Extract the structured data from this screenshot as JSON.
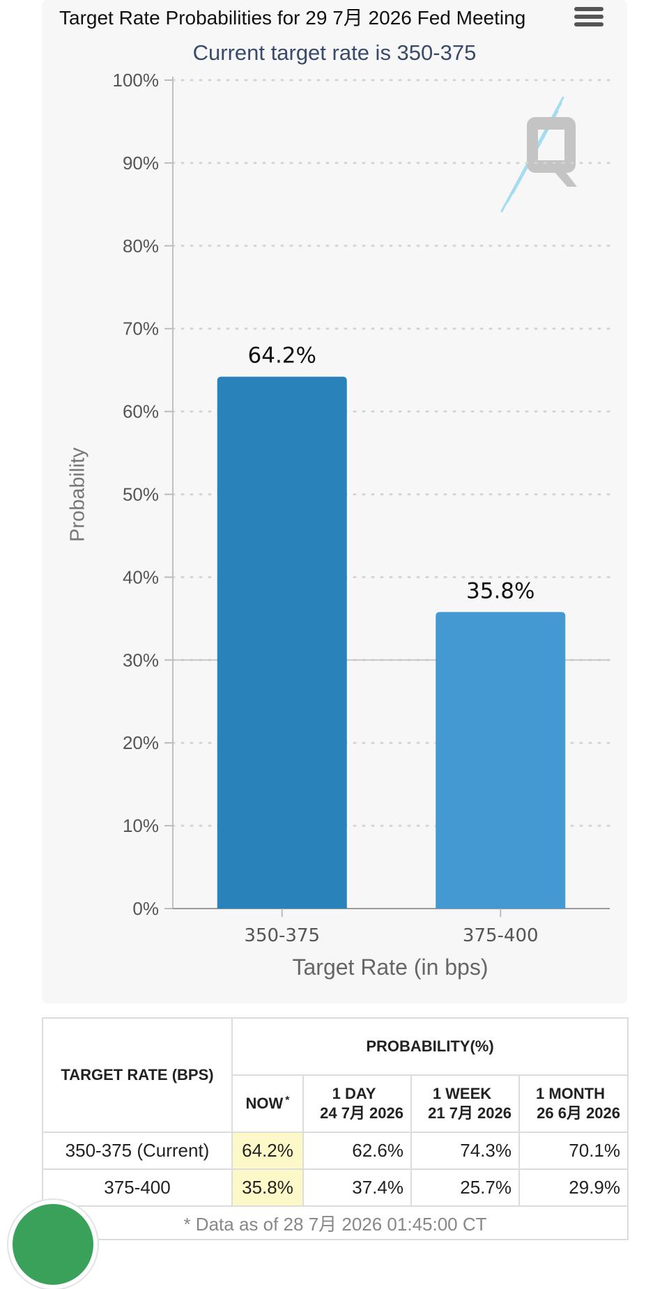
{
  "header": {
    "title": "Target Rate Probabilities for 29 7月 2026 Fed Meeting",
    "menu_icon": "hamburger-menu-icon"
  },
  "chart_data": {
    "type": "bar",
    "title": "Target Rate Probabilities for 29 7月 2026 Fed Meeting",
    "subtitle": "Current target rate is 350-375",
    "categories": [
      "350-375",
      "375-400"
    ],
    "values": [
      64.2,
      35.8
    ],
    "data_labels": [
      "64.2%",
      "35.8%"
    ],
    "xlabel": "Target Rate (in bps)",
    "ylabel": "Probability",
    "ylim": [
      0,
      100
    ],
    "yticks": [
      {
        "value": 100,
        "label": "100%"
      },
      {
        "value": 90,
        "label": "90%"
      },
      {
        "value": 80,
        "label": "80%"
      },
      {
        "value": 70,
        "label": "70%"
      },
      {
        "value": 60,
        "label": "60%"
      },
      {
        "value": 50,
        "label": "50%"
      },
      {
        "value": 40,
        "label": "40%"
      },
      {
        "value": 30,
        "label": "30%"
      },
      {
        "value": 20,
        "label": "20%"
      },
      {
        "value": 10,
        "label": "10%"
      },
      {
        "value": 0,
        "label": "0%"
      }
    ],
    "grid": true,
    "legend": "none",
    "bar_colors": [
      "#2a82ba",
      "#4499d2"
    ]
  },
  "table": {
    "rate_header": "TARGET RATE (BPS)",
    "prob_header": "PROBABILITY(%)",
    "columns": [
      {
        "line1": "NOW",
        "line2": "",
        "mark": "*"
      },
      {
        "line1": "1 DAY",
        "line2": "24 7月 2026",
        "mark": ""
      },
      {
        "line1": "1 WEEK",
        "line2": "21 7月 2026",
        "mark": ""
      },
      {
        "line1": "1 MONTH",
        "line2": "26 6月 2026",
        "mark": ""
      }
    ],
    "rows": [
      {
        "rate": "350-375 (Current)",
        "now": "64.2%",
        "day": "62.6%",
        "week": "74.3%",
        "month": "70.1%"
      },
      {
        "rate": "375-400",
        "now": "35.8%",
        "day": "37.4%",
        "week": "25.7%",
        "month": "29.9%"
      }
    ],
    "footnote": "* Data as of 28 7月 2026 01:45:00 CT",
    "now_highlight_color": "#fdf8c8"
  },
  "fab": {
    "icon": "floating-action-icon",
    "color": "#3aa15a"
  }
}
